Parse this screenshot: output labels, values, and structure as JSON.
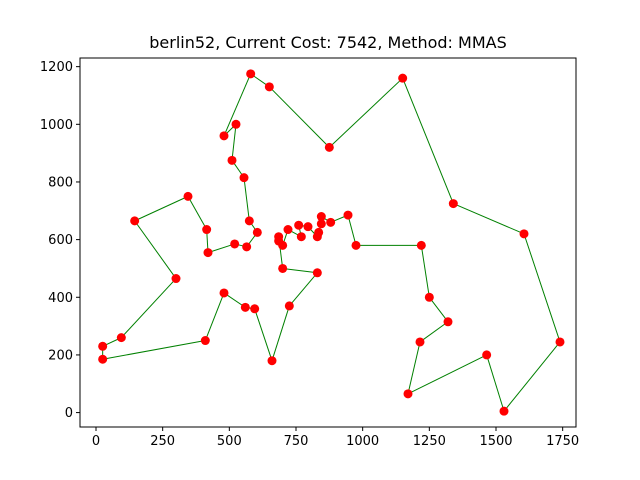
{
  "chart_data": {
    "type": "scatter",
    "title": "berlin52, Current Cost: 7542, Method: MMAS",
    "xlabel": "",
    "ylabel": "",
    "xlim": [
      -60,
      1800
    ],
    "ylim": [
      -50,
      1230
    ],
    "x_ticks": [
      0,
      250,
      500,
      750,
      1000,
      1250,
      1500,
      1750
    ],
    "y_ticks": [
      0,
      200,
      400,
      600,
      800,
      1000,
      1200
    ],
    "x_tick_labels": [
      "0",
      "250",
      "500",
      "750",
      "1000",
      "1250",
      "1500",
      "1750"
    ],
    "y_tick_labels": [
      "0",
      "200",
      "400",
      "600",
      "800",
      "1000",
      "1200"
    ],
    "grid": false,
    "legend": "none",
    "colors": {
      "points": "#ff0000",
      "route": "#008000"
    },
    "tour": [
      [
        565,
        575
      ],
      [
        605,
        625
      ],
      [
        575,
        665
      ],
      [
        555,
        815
      ],
      [
        510,
        875
      ],
      [
        525,
        1000
      ],
      [
        480,
        960
      ],
      [
        580,
        1175
      ],
      [
        650,
        1130
      ],
      [
        875,
        920
      ],
      [
        1150,
        1160
      ],
      [
        1340,
        725
      ],
      [
        1605,
        620
      ],
      [
        1740,
        245
      ],
      [
        1530,
        5
      ],
      [
        1465,
        200
      ],
      [
        1170,
        65
      ],
      [
        1215,
        245
      ],
      [
        1320,
        315
      ],
      [
        1250,
        400
      ],
      [
        1220,
        580
      ],
      [
        975,
        580
      ],
      [
        945,
        685
      ],
      [
        880,
        660
      ],
      [
        845,
        680
      ],
      [
        845,
        655
      ],
      [
        835,
        625
      ],
      [
        830,
        610
      ],
      [
        795,
        645
      ],
      [
        760,
        650
      ],
      [
        770,
        610
      ],
      [
        720,
        635
      ],
      [
        700,
        580
      ],
      [
        685,
        595
      ],
      [
        685,
        610
      ],
      [
        700,
        500
      ],
      [
        830,
        485
      ],
      [
        725,
        370
      ],
      [
        660,
        180
      ],
      [
        595,
        360
      ],
      [
        560,
        365
      ],
      [
        480,
        415
      ],
      [
        410,
        250
      ],
      [
        25,
        185
      ],
      [
        25,
        230
      ],
      [
        95,
        260
      ],
      [
        300,
        465
      ],
      [
        145,
        665
      ],
      [
        345,
        750
      ],
      [
        415,
        635
      ],
      [
        420,
        555
      ],
      [
        520,
        585
      ]
    ]
  }
}
